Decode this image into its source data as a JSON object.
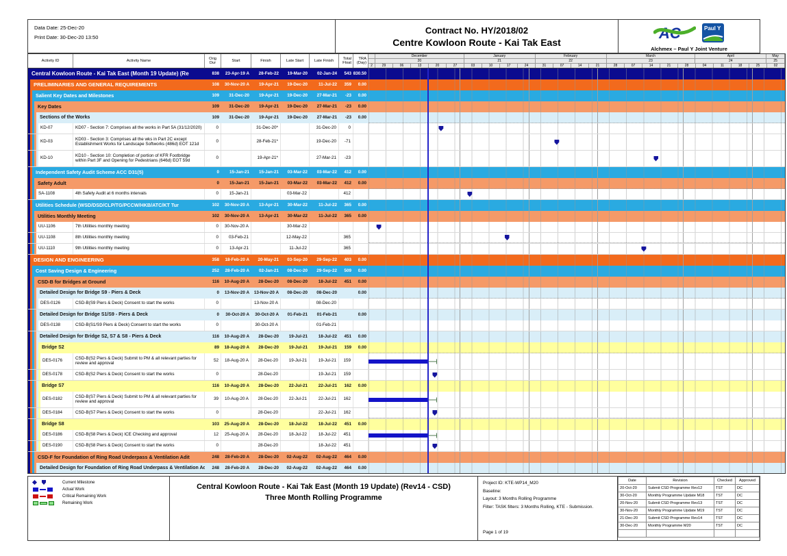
{
  "header": {
    "data_date": "Data Date: 25-Dec-20",
    "print_date": "Print Date: 30-Dec-20 13:50",
    "title_line1": "Contract No. HY/2018/02",
    "title_line2": "Centre Kowloon Route - Kai Tak East",
    "logo_caption": "Alchmex – Paul Y Joint Venture",
    "logo_aic_text": "AC",
    "logo_pauly_text": "Paul Y"
  },
  "columns": [
    "Activity ID",
    "Activity Name",
    "Orig Dur",
    "Start",
    "Finish",
    "Late Start",
    "Late Finish",
    "Total\nFloat",
    "TRA\n(Day)"
  ],
  "timescale": {
    "lead": "2",
    "months": [
      {
        "name": "December",
        "num": "20",
        "weeks": [
          "29",
          "06",
          "13",
          "20",
          "27"
        ]
      },
      {
        "name": "January",
        "num": "21",
        "weeks": [
          "03",
          "10",
          "17",
          "24"
        ]
      },
      {
        "name": "February",
        "num": "22",
        "weeks": [
          "31",
          "07",
          "14",
          "21"
        ]
      },
      {
        "name": "March",
        "num": "23",
        "weeks": [
          "28",
          "07",
          "14",
          "21",
          "28"
        ]
      },
      {
        "name": "April",
        "num": "24",
        "weeks": [
          "04",
          "11",
          "18",
          "25"
        ]
      },
      {
        "name": "May",
        "num": "25",
        "weeks": [
          "02"
        ]
      }
    ]
  },
  "colors": {
    "navy": "#0b0b8f",
    "orange": "#f26a1d",
    "sky_blue": "#2aaae1",
    "salmon": "#f59a68",
    "light_blue": "#d9eef8",
    "yellow": "#ffff9e",
    "bar_blue": "#1414c8",
    "milestone_blue": "#15159e",
    "data_date_blue": "#2424c8",
    "remaining_green": "#8ee28e",
    "remaining_green_dark": "#0a7a0a",
    "critical_red": "#cc1111"
  },
  "gantt": {
    "data_date_pos": 14.1
  },
  "rows": [
    {
      "kind": "g0",
      "indent": 0,
      "name": "Central Kowloon Route - Kai Tak East (Month 19 Update) (Re",
      "v": [
        "838",
        "23-Apr-19 A",
        "28-Feb-22",
        "19-Mar-20",
        "02-Jan-24",
        "543",
        "830.50"
      ]
    },
    {
      "kind": "g1",
      "indent": 1,
      "name": "PRELIMINARIES AND GENERAL REQUIREMENTS",
      "v": [
        "108",
        "30-Nov-20 A",
        "19-Apr-21",
        "19-Dec-20",
        "11-Jul-22",
        "359",
        "0.00"
      ]
    },
    {
      "kind": "g2",
      "indent": 2,
      "name": "Salient Key Dates and Milestones",
      "v": [
        "109",
        "31-Dec-20",
        "19-Apr-21",
        "19-Dec-20",
        "27-Mar-21",
        "-23",
        "0.00"
      ]
    },
    {
      "kind": "g3",
      "indent": 3,
      "name": "Key Dates",
      "v": [
        "109",
        "31-Dec-20",
        "19-Apr-21",
        "19-Dec-20",
        "27-Mar-21",
        "-23",
        "0.00"
      ]
    },
    {
      "kind": "g4",
      "indent": 4,
      "name": "Sections of the Works",
      "v": [
        "109",
        "31-Dec-20",
        "19-Apr-21",
        "19-Dec-20",
        "27-Mar-21",
        "-23",
        "0.00"
      ]
    },
    {
      "kind": "leaf",
      "indent": 5,
      "id": "KD-07",
      "name": "KD07 - Section 7: Comprises all the works in Part 5A (31/12/2020)",
      "v": [
        "0",
        "",
        "31-Dec-20*",
        "",
        "31-Dec-20",
        "0",
        ""
      ],
      "ms": 17.4
    },
    {
      "kind": "leaf",
      "indent": 5,
      "id": "KD-03",
      "lines": 2,
      "name": "KD03 - Section 3: Comprises all the wks in Part 2C except Establishment Works for Landscape Softworks (486d) EOT 121d",
      "v": [
        "0",
        "",
        "28-Feb-21*",
        "",
        "19-Dec-20",
        "-71",
        ""
      ],
      "ms": 45.2
    },
    {
      "kind": "leaf",
      "indent": 5,
      "id": "KD-10",
      "lines": 2,
      "name": "KD10 - Section 10: Completion of portion of KFR Footbridge within Part 3F and Opening for Pedestrians (646d) EOT 59d",
      "v": [
        "0",
        "",
        "19-Apr-21*",
        "",
        "27-Mar-21",
        "-23",
        ""
      ],
      "ms": 69.0
    },
    {
      "kind": "g2",
      "indent": 2,
      "name": "Independent Safety Audit Scheme ACC D31(5)",
      "v": [
        "0",
        "15-Jan-21",
        "15-Jan-21",
        "03-Mar-22",
        "03-Mar-22",
        "412",
        "0.00"
      ]
    },
    {
      "kind": "g3",
      "indent": 3,
      "name": "Safety Adult",
      "v": [
        "0",
        "15-Jan-21",
        "15-Jan-21",
        "03-Mar-22",
        "03-Mar-22",
        "412",
        "0.00"
      ]
    },
    {
      "kind": "leaf",
      "indent": 4,
      "id": "SA-1108",
      "name": "4th Safety Audit at 6 months intervals",
      "v": [
        "0",
        "15-Jan-21",
        "",
        "03-Mar-22",
        "",
        "412",
        ""
      ],
      "ms": 24.3
    },
    {
      "kind": "g2",
      "indent": 2,
      "name": "Utilities Schedule (WSD/DSD/CLP/TG/PCCW/HKB/ATC/KT Tur",
      "v": [
        "102",
        "30-Nov-20 A",
        "13-Apr-21",
        "30-Mar-22",
        "11-Jul-22",
        "365",
        "0.00"
      ]
    },
    {
      "kind": "g3",
      "indent": 3,
      "name": "Utilities Monthly Meeting",
      "v": [
        "102",
        "30-Nov-20 A",
        "13-Apr-21",
        "30-Mar-22",
        "11-Jul-22",
        "365",
        "0.00"
      ]
    },
    {
      "kind": "leaf",
      "indent": 4,
      "id": "UU-1106",
      "name": "7th Utilities monthly meeting",
      "v": [
        "0",
        "30-Nov-20 A",
        "",
        "30-Mar-22",
        "",
        "",
        ""
      ],
      "ms": 2.5
    },
    {
      "kind": "leaf",
      "indent": 4,
      "id": "UU-1108",
      "name": "8th Utilities monthly meeting",
      "v": [
        "0",
        "03-Feb-21",
        "",
        "12-May-22",
        "",
        "365",
        ""
      ],
      "ms": 33.3
    },
    {
      "kind": "leaf",
      "indent": 4,
      "id": "UU-1110",
      "name": "9th Utilities monthly meeting",
      "v": [
        "0",
        "13-Apr-21",
        "",
        "11-Jul-22",
        "",
        "365",
        ""
      ],
      "ms": 66.1
    },
    {
      "kind": "g1",
      "indent": 1,
      "name": "DESIGN AND ENGINEERING",
      "v": [
        "358",
        "18-Feb-20 A",
        "20-May-21",
        "03-Sep-20",
        "29-Sep-22",
        "403",
        "0.00"
      ]
    },
    {
      "kind": "g2",
      "indent": 2,
      "name": "Cost Saving Design & Engineering",
      "v": [
        "252",
        "28-Feb-20 A",
        "02-Jan-21",
        "08-Dec-20",
        "29-Sep-22",
        "509",
        "0.00"
      ]
    },
    {
      "kind": "g3",
      "indent": 3,
      "name": "CSD-B for Bridges at Ground",
      "v": [
        "116",
        "10-Aug-20 A",
        "28-Dec-20",
        "08-Dec-20",
        "18-Jul-22",
        "451",
        "0.00"
      ]
    },
    {
      "kind": "g4",
      "indent": 4,
      "name": "Detailed Design for Bridge S9 - Piers & Deck",
      "v": [
        "0",
        "13-Nov-20 A",
        "13-Nov-20 A",
        "08-Dec-20",
        "08-Dec-20",
        "",
        "0.00"
      ]
    },
    {
      "kind": "leaf",
      "indent": 5,
      "id": "DES-0126",
      "name": "CSD-B(S9 Piers & Deck) Consent to start the works",
      "v": [
        "0",
        "",
        "13-Nov-20 A",
        "",
        "08-Dec-20",
        "",
        ""
      ]
    },
    {
      "kind": "g4",
      "indent": 4,
      "name": "Detailed Design for Bridge S1/S9 - Piers & Deck",
      "v": [
        "0",
        "30-Oct-20 A",
        "30-Oct-20 A",
        "01-Feb-21",
        "01-Feb-21",
        "",
        "0.00"
      ]
    },
    {
      "kind": "leaf",
      "indent": 5,
      "id": "DES-0138",
      "name": "CSD-B(S1/S9 Piers & Deck) Consent to start the works",
      "v": [
        "0",
        "",
        "30-Oct-20 A",
        "",
        "01-Feb-21",
        "",
        ""
      ]
    },
    {
      "kind": "g4",
      "indent": 4,
      "name": "Detailed Design for Bridge S2, S7 & S8 - Piers & Deck",
      "v": [
        "116",
        "10-Aug-20 A",
        "28-Dec-20",
        "19-Jul-21",
        "18-Jul-22",
        "451",
        "0.00"
      ]
    },
    {
      "kind": "g5",
      "indent": 5,
      "name": "Bridge S2",
      "v": [
        "89",
        "18-Aug-20 A",
        "28-Dec-20",
        "19-Jul-21",
        "19-Jul-21",
        "159",
        "0.00"
      ]
    },
    {
      "kind": "leaf",
      "indent": 6,
      "id": "DES-0176",
      "lines": 2,
      "name": "CSD-B(S2 Piers & Deck) Submit to PM & all relevant parties for review and approval",
      "v": [
        "52",
        "18-Aug-20 A",
        "28-Dec-20",
        "19-Jul-21",
        "19-Jul-21",
        "159",
        ""
      ],
      "bar": [
        0,
        14.1
      ],
      "ext": [
        14.1,
        16.4
      ]
    },
    {
      "kind": "leaf",
      "indent": 6,
      "id": "DES-0178",
      "name": "CSD-B(S2 Piers & Deck) Consent to start the works",
      "v": [
        "0",
        "",
        "28-Dec-20",
        "",
        "19-Jul-21",
        "159",
        ""
      ],
      "ms": 15.9
    },
    {
      "kind": "g5",
      "indent": 5,
      "name": "Bridge S7",
      "v": [
        "116",
        "10-Aug-20 A",
        "28-Dec-20",
        "22-Jul-21",
        "22-Jul-21",
        "162",
        "0.00"
      ]
    },
    {
      "kind": "leaf",
      "indent": 6,
      "id": "DES-0182",
      "lines": 2,
      "name": "CSD-B(S7 Piers & Deck) Submit to PM & all relevant parties for review and approval",
      "v": [
        "39",
        "10-Aug-20 A",
        "28-Dec-20",
        "22-Jul-21",
        "22-Jul-21",
        "162",
        ""
      ],
      "bar": [
        0,
        14.1
      ],
      "ext": [
        14.1,
        16.4
      ]
    },
    {
      "kind": "leaf",
      "indent": 6,
      "id": "DES-0184",
      "name": "CSD-B(S7 Piers & Deck) Consent to start the works",
      "v": [
        "0",
        "",
        "28-Dec-20",
        "",
        "22-Jul-21",
        "162",
        ""
      ],
      "ms": 15.9
    },
    {
      "kind": "g5",
      "indent": 5,
      "name": "Bridge S8",
      "v": [
        "103",
        "25-Aug-20 A",
        "28-Dec-20",
        "18-Jul-22",
        "18-Jul-22",
        "451",
        "0.00"
      ]
    },
    {
      "kind": "leaf",
      "indent": 6,
      "id": "DES-0186",
      "name": "CSD-B(S8 Piers & Deck) ICE Checking and approval",
      "v": [
        "12",
        "25-Aug-20 A",
        "28-Dec-20",
        "18-Jul-22",
        "18-Jul-22",
        "451",
        ""
      ],
      "bar": [
        0,
        14.1
      ],
      "ext": [
        14.1,
        16.4
      ]
    },
    {
      "kind": "leaf",
      "indent": 6,
      "id": "DES-0190",
      "name": "CSD-B(S8 Piers & Deck) Consent to start the works",
      "v": [
        "0",
        "",
        "28-Dec-20",
        "",
        "18-Jul-22",
        "451",
        ""
      ],
      "ms": 15.9
    },
    {
      "kind": "g3",
      "indent": 3,
      "name": "CSD-F for Foundation of Ring Road Underpass & Ventilation Adit",
      "v": [
        "248",
        "28-Feb-20 A",
        "28-Dec-20",
        "02-Aug-22",
        "02-Aug-22",
        "464",
        "0.00"
      ]
    },
    {
      "kind": "g4",
      "indent": 4,
      "name": "Detailed Design for Foundation of Ring Road Underpass & Ventilation Adit",
      "v": [
        "248",
        "28-Feb-20 A",
        "28-Dec-20",
        "02-Aug-22",
        "02-Aug-22",
        "464",
        "0.00"
      ]
    }
  ],
  "legend": [
    {
      "type": "milestone",
      "label": "Current Milestone"
    },
    {
      "type": "bar-blue",
      "label": "Actual Work"
    },
    {
      "type": "bar-red",
      "label": "Critical Remaining Work"
    },
    {
      "type": "bar-green",
      "label": "Remaining Work"
    }
  ],
  "footer": {
    "title_line1": "Central Kowloon Route - Kai Tak East (Month 19 Update) (Rev14 - CSD)",
    "title_line2": "Three Month Rolling Programme",
    "info_lines": [
      "Project ID: KTE-WP14_M20",
      "Baseline:",
      "Layout: 3 Months Rolling Programme",
      "Filter: TASK filters: 3 Months Rolling, KTE - Submission."
    ],
    "page_label": "Page 1 of 19"
  },
  "revisions": {
    "headers": [
      "Date",
      "Revision",
      "Checked",
      "Approved"
    ],
    "rows": [
      [
        "20-Oct-20",
        "Submit CSD Programme Rev12",
        "TST",
        "DC"
      ],
      [
        "30-Oct-20",
        "Monthly Programme Update M18",
        "TST",
        "DC"
      ],
      [
        "20-Nov-20",
        "Submit CSD Programme Rev13",
        "TST",
        "DC"
      ],
      [
        "30-Nov-20",
        "Monthly Programme Update M19",
        "TST",
        "DC"
      ],
      [
        "21-Dec-20",
        "Submit CSD Programme Rev14",
        "TST",
        "DC"
      ],
      [
        "30-Dec-20",
        "Monthly Programme M20",
        "TST",
        "DC"
      ]
    ]
  }
}
